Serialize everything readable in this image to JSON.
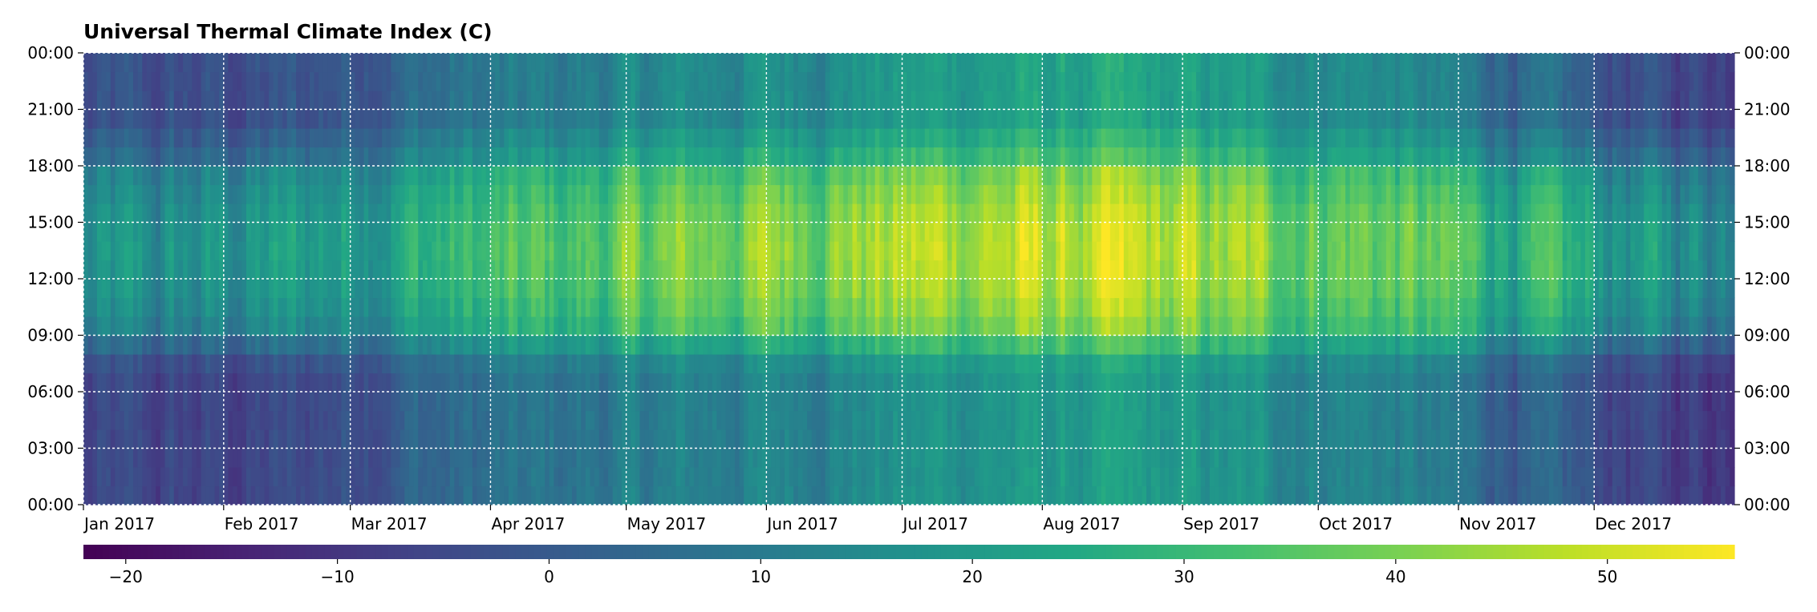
{
  "chart_data": {
    "type": "heatmap",
    "title": "Universal Thermal Climate Index (C)",
    "year": 2017,
    "x_tick_labels": [
      "Jan 2017",
      "Feb 2017",
      "Mar 2017",
      "Apr 2017",
      "May 2017",
      "Jun 2017",
      "Jul 2017",
      "Aug 2017",
      "Sep 2017",
      "Oct 2017",
      "Nov 2017",
      "Dec 2017"
    ],
    "y_tick_labels": [
      "00:00",
      "03:00",
      "06:00",
      "09:00",
      "12:00",
      "15:00",
      "18:00",
      "21:00",
      "00:00"
    ],
    "y_tick_hours": [
      0,
      3,
      6,
      9,
      12,
      15,
      18,
      21,
      24
    ],
    "colorbar": {
      "colormap": "viridis",
      "range": [
        -22,
        56
      ],
      "ticks": [
        -20,
        -10,
        0,
        10,
        20,
        30,
        40,
        50
      ],
      "tick_labels": [
        "−20",
        "−10",
        "0",
        "10",
        "20",
        "30",
        "40",
        "50"
      ],
      "placement": "bottom"
    },
    "grid": true,
    "grid_style": "white dotted",
    "monthly_typical_utci": [
      {
        "month": "Jan",
        "night": -8,
        "day": 15
      },
      {
        "month": "Feb",
        "night": -7,
        "day": 20
      },
      {
        "month": "Mar",
        "night": 2,
        "day": 27
      },
      {
        "month": "Apr",
        "night": 6,
        "day": 33
      },
      {
        "month": "May",
        "night": 10,
        "day": 40
      },
      {
        "month": "Jun",
        "night": 13,
        "day": 45
      },
      {
        "month": "Jul",
        "night": 17,
        "day": 48
      },
      {
        "month": "Aug",
        "night": 18,
        "day": 47
      },
      {
        "month": "Sep",
        "night": 15,
        "day": 42
      },
      {
        "month": "Oct",
        "night": 11,
        "day": 38
      },
      {
        "month": "Nov",
        "night": 0,
        "day": 27
      },
      {
        "month": "Dec",
        "night": -9,
        "day": 17
      }
    ]
  }
}
